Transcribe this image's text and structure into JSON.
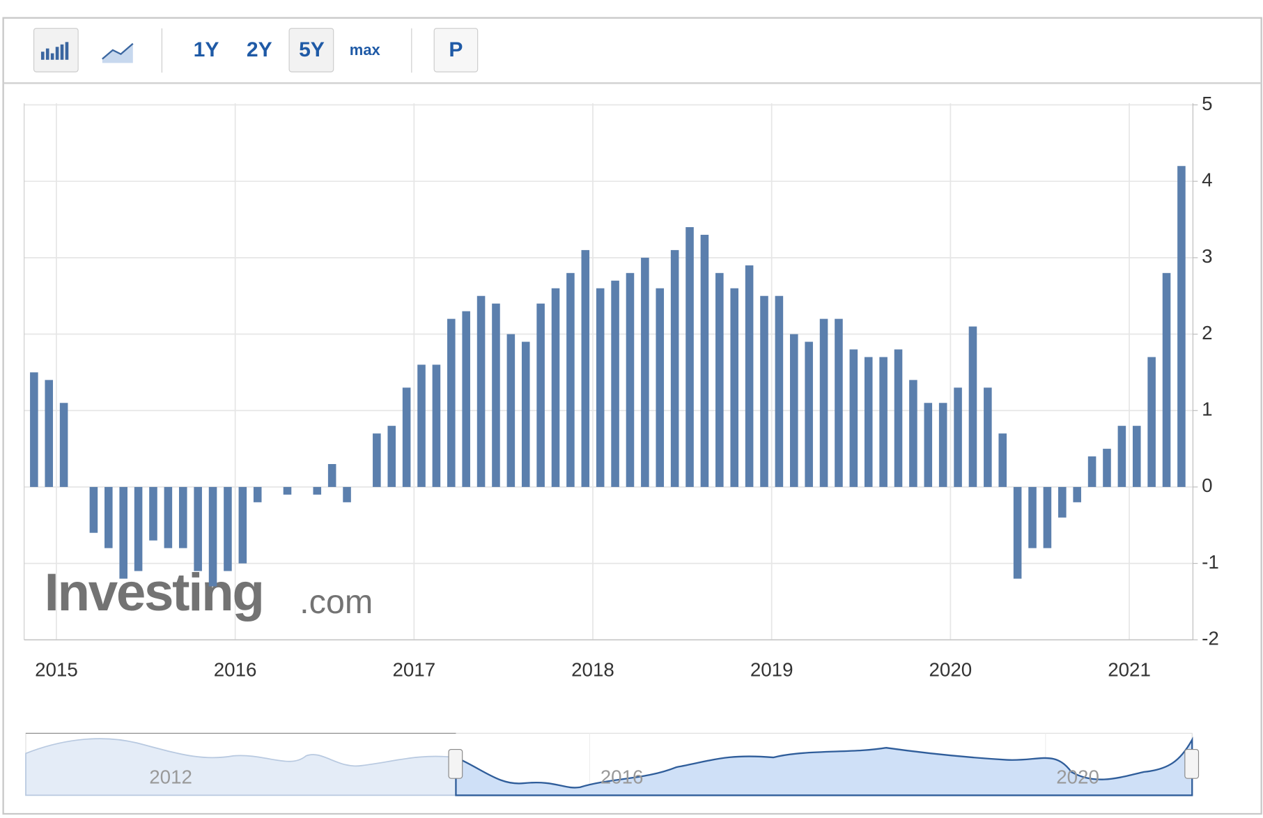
{
  "toolbar": {
    "buttons": [
      "1Y",
      "2Y",
      "5Y",
      "max",
      "P"
    ]
  },
  "watermark": {
    "brand": "Investing",
    "suffix": ".com"
  },
  "navigator": {
    "labels": [
      "2012",
      "2016",
      "2020"
    ]
  },
  "chart_data": {
    "type": "bar",
    "color": "#5b7fad",
    "grid": true,
    "categories": [
      null,
      null,
      "2015",
      null,
      null,
      null,
      null,
      null,
      null,
      null,
      null,
      null,
      null,
      null,
      "2016",
      null,
      null,
      null,
      null,
      null,
      null,
      null,
      null,
      null,
      null,
      null,
      "2017",
      null,
      null,
      null,
      null,
      null,
      null,
      null,
      null,
      null,
      null,
      null,
      "2018",
      null,
      null,
      null,
      null,
      null,
      null,
      null,
      null,
      null,
      null,
      null,
      "2019",
      null,
      null,
      null,
      null,
      null,
      null,
      null,
      null,
      null,
      null,
      null,
      "2020",
      null,
      null,
      null,
      null,
      null,
      null,
      null,
      null,
      null,
      null,
      null,
      "2021",
      null,
      null,
      null
    ],
    "values": [
      1.5,
      1.4,
      1.1,
      0,
      -0.6,
      -0.8,
      -1.2,
      -1.1,
      -0.7,
      -0.8,
      -0.8,
      -1.1,
      -1.3,
      -1.1,
      -1.0,
      -0.2,
      0,
      -0.1,
      0,
      -0.1,
      0.3,
      -0.2,
      0,
      0.7,
      0.8,
      1.3,
      1.6,
      1.6,
      2.2,
      2.3,
      2.5,
      2.4,
      2.0,
      1.9,
      2.4,
      2.6,
      2.8,
      3.1,
      2.6,
      2.7,
      2.8,
      3.0,
      2.6,
      3.1,
      3.4,
      3.3,
      2.8,
      2.6,
      2.9,
      2.5,
      2.5,
      2.0,
      1.9,
      2.2,
      2.2,
      1.8,
      1.7,
      1.7,
      1.8,
      1.4,
      1.1,
      1.1,
      1.3,
      2.1,
      1.3,
      0.7,
      -1.2,
      -0.8,
      -0.8,
      -0.4,
      -0.2,
      0.4,
      0.5,
      0.8,
      0.8,
      1.7,
      2.8,
      4.2
    ],
    "ylim": [
      -2,
      5
    ],
    "yticks": [
      -2,
      -1,
      0,
      1,
      2,
      3,
      4,
      5
    ]
  }
}
